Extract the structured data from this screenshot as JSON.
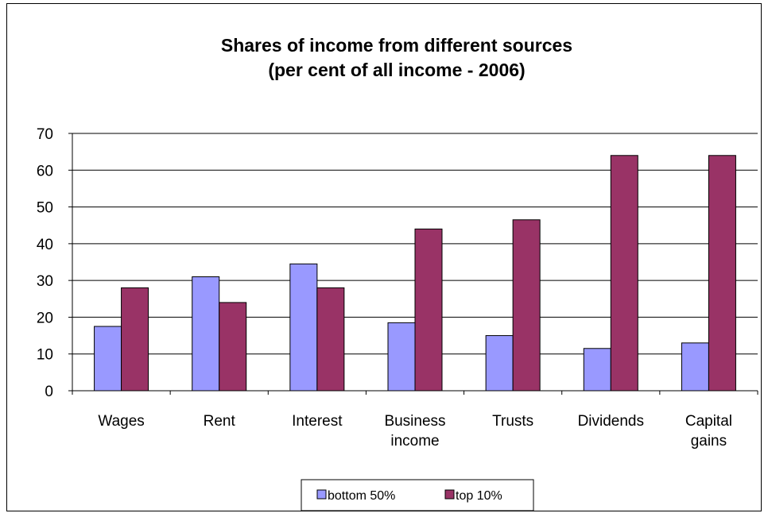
{
  "chart_data": {
    "type": "bar",
    "title_lines": [
      "Shares of income from different sources",
      "(per cent of all income - 2006)"
    ],
    "xlabel": "",
    "ylabel": "",
    "ylim": [
      0,
      70
    ],
    "y_ticks": [
      0,
      10,
      20,
      30,
      40,
      50,
      60,
      70
    ],
    "grid": true,
    "categories": [
      [
        "Wages"
      ],
      [
        "Rent"
      ],
      [
        "Interest"
      ],
      [
        "Business",
        "income"
      ],
      [
        "Trusts"
      ],
      [
        "Dividends"
      ],
      [
        "Capital",
        "gains"
      ]
    ],
    "series": [
      {
        "name": "bottom 50%",
        "color": "#9999ff",
        "values": [
          17.5,
          31,
          34.5,
          18.5,
          15,
          11.5,
          13
        ]
      },
      {
        "name": "top 10%",
        "color": "#993366",
        "values": [
          28,
          24,
          28,
          44,
          46.5,
          64,
          64
        ]
      }
    ],
    "legend_position": "bottom"
  }
}
